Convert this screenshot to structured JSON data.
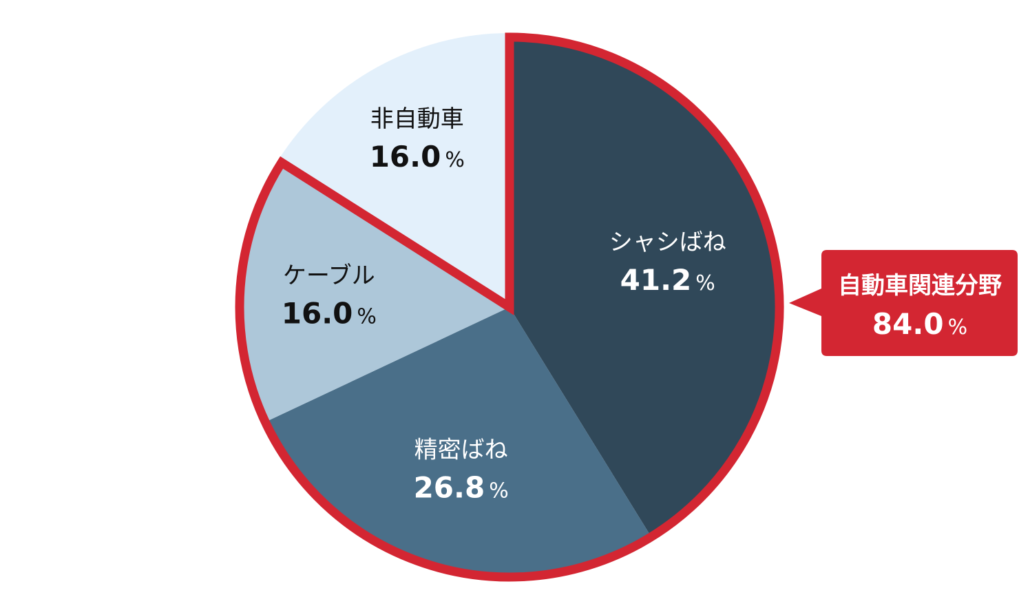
{
  "chart_data": {
    "type": "pie",
    "start_angle_deg": 0,
    "direction": "clockwise",
    "unit": "%",
    "slices": [
      {
        "name": "シャシばね",
        "value": 41.2,
        "value_label": "41.2",
        "color": "#304859",
        "text_color": "#ffffff"
      },
      {
        "name": "精密ばね",
        "value": 26.8,
        "value_label": "26.8",
        "color": "#4a6f89",
        "text_color": "#ffffff"
      },
      {
        "name": "ケーブル",
        "value": 16.0,
        "value_label": "16.0",
        "color": "#adc7d9",
        "text_color": "#111111"
      },
      {
        "name": "非自動車",
        "value": 16.0,
        "value_label": "16.0",
        "color": "#e3f0fb",
        "text_color": "#111111"
      }
    ],
    "highlight": {
      "name": "自動車関連分野",
      "value": 84.0,
      "value_label": "84.0",
      "includes": [
        "シャシばね",
        "精密ばね",
        "ケーブル"
      ],
      "color": "#d32632"
    }
  }
}
